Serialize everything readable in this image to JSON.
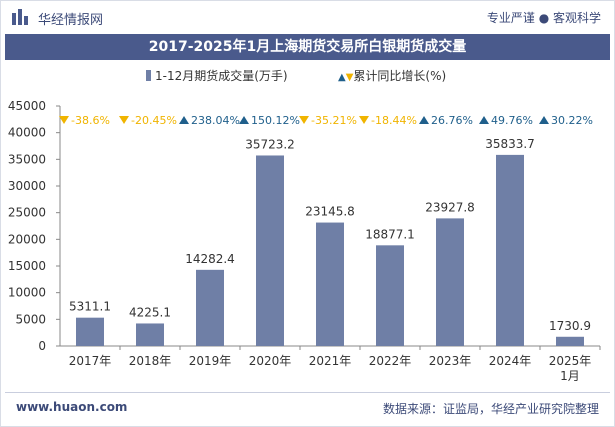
{
  "header": {
    "brand": "华经情报网",
    "tagline": "专业严谨 ● 客观科学"
  },
  "chart_data": {
    "type": "bar",
    "title": "2017-2025年1月上海期货交易所白银期货成交量",
    "legend": {
      "bar_label": "1-12月期货成交量(万手)",
      "growth_label": "累计同比增长(%)"
    },
    "categories": [
      "2017年",
      "2018年",
      "2019年",
      "2020年",
      "2021年",
      "2022年",
      "2023年",
      "2024年",
      "2025年\n1月"
    ],
    "values": [
      5311.1,
      4225.1,
      14282.4,
      35723.2,
      23145.8,
      18877.1,
      23927.8,
      35833.7,
      1730.9
    ],
    "value_labels": [
      "5311.1",
      "4225.1",
      "14282.4",
      "35723.2",
      "23145.8",
      "18877.1",
      "23927.8",
      "35833.7",
      "1730.9"
    ],
    "growth": [
      {
        "dir": "down",
        "label": "-38.6%"
      },
      {
        "dir": "down",
        "label": "-20.45%"
      },
      {
        "dir": "up",
        "label": "238.04%"
      },
      {
        "dir": "up",
        "label": "150.12%"
      },
      {
        "dir": "down",
        "label": "-35.21%"
      },
      {
        "dir": "down",
        "label": "-18.44%"
      },
      {
        "dir": "up",
        "label": "26.76%"
      },
      {
        "dir": "up",
        "label": "49.76%"
      },
      {
        "dir": "up",
        "label": "30.22%"
      }
    ],
    "ylim": [
      0,
      45000
    ],
    "yticks": [
      0,
      5000,
      10000,
      15000,
      20000,
      25000,
      30000,
      35000,
      40000,
      45000
    ],
    "xlabel": "",
    "ylabel": "",
    "colors": {
      "bar": "#6f7fa6",
      "up": "#1f5f8b",
      "down": "#f0b400"
    }
  },
  "footer": {
    "website": "www.huaon.com",
    "source": "数据来源：证监局，华经产业研究院整理"
  }
}
